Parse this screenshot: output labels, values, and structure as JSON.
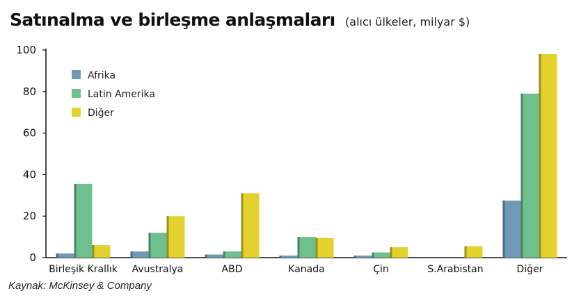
{
  "chart_data": {
    "type": "bar",
    "title": "Satınalma ve birleşme anlaşmaları",
    "subtitle": "(alıcı ülkeler, milyar $)",
    "categories": [
      "Birleşik Krallık",
      "Avustralya",
      "ABD",
      "Kanada",
      "Çin",
      "S.Arabistan",
      "Diğer"
    ],
    "series": [
      {
        "name": "Afrika",
        "color": "#6f9ab5",
        "values": [
          2,
          3,
          1.5,
          1,
          1,
          0,
          27.5
        ]
      },
      {
        "name": "Latin Amerika",
        "color": "#6fc08f",
        "values": [
          35.5,
          12,
          3,
          10,
          2.5,
          0,
          79
        ]
      },
      {
        "name": "Diğer",
        "color": "#e3d12e",
        "values": [
          6,
          20,
          31,
          9.5,
          5,
          5.5,
          98
        ]
      }
    ],
    "ylim": [
      0,
      100
    ],
    "yticks": [
      0,
      20,
      40,
      60,
      80,
      100
    ],
    "grid": false,
    "legend_position": "top-left",
    "source": "Kaynak: McKinsey & Company"
  }
}
